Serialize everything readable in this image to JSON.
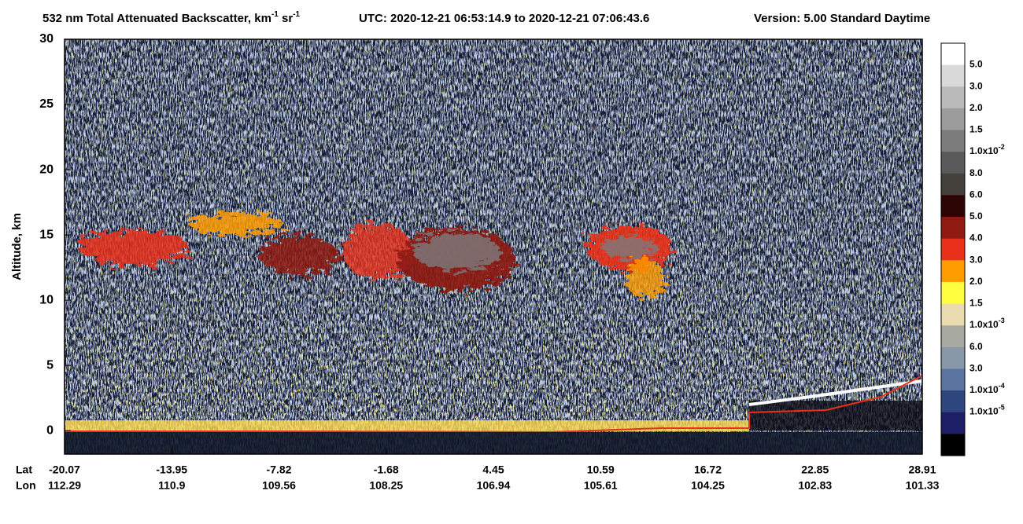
{
  "chart_data": {
    "type": "heatmap",
    "title": {
      "main": "532 nm Total Attenuated Backscatter, km",
      "sup1": "-1",
      "mid": " sr",
      "sup2": "-1",
      "utc": "UTC:  2020-12-21 06:53:14.9  to  2020-12-21 07:06:43.6",
      "version": "Version: 5.00  Standard  Daytime"
    },
    "y_label": "Altitude, km",
    "ylim": [
      -1.8,
      30
    ],
    "yticks": [
      0,
      5,
      10,
      15,
      20,
      25,
      30
    ],
    "x_row_labels": [
      "Lat",
      "Lon"
    ],
    "lat": [
      -20.07,
      -13.95,
      -7.82,
      -1.68,
      4.45,
      10.59,
      16.72,
      22.85,
      28.91
    ],
    "lon": [
      112.29,
      110.9,
      109.56,
      108.25,
      106.94,
      105.61,
      104.25,
      102.83,
      101.33
    ],
    "colorbar": {
      "colors": [
        "#ffffff",
        "#d9d9d9",
        "#bababa",
        "#9c9c9c",
        "#7c7c7c",
        "#5a5a5a",
        "#44403c",
        "#2c0404",
        "#8e1a12",
        "#e8301a",
        "#ff9c00",
        "#ffff40",
        "#eadcb0",
        "#a8aaa2",
        "#8898a8",
        "#5c74a0",
        "#2e4680",
        "#1e1e66",
        "#000000"
      ],
      "labels": [
        {
          "text": "5.0"
        },
        {
          "text": "3.0"
        },
        {
          "text": "2.0"
        },
        {
          "text": "1.5"
        },
        {
          "text": "1.0x10",
          "sup": "-2"
        },
        {
          "text": "8.0"
        },
        {
          "text": "6.0"
        },
        {
          "text": "5.0"
        },
        {
          "text": "4.0"
        },
        {
          "text": "3.0"
        },
        {
          "text": "2.0"
        },
        {
          "text": "1.5"
        },
        {
          "text": "1.0x10",
          "sup": "-3"
        },
        {
          "text": "6.0"
        },
        {
          "text": "3.0"
        },
        {
          "text": "1.0x10",
          "sup": "-4"
        },
        {
          "text": "1.0x10",
          "sup": "-5"
        }
      ]
    }
  }
}
